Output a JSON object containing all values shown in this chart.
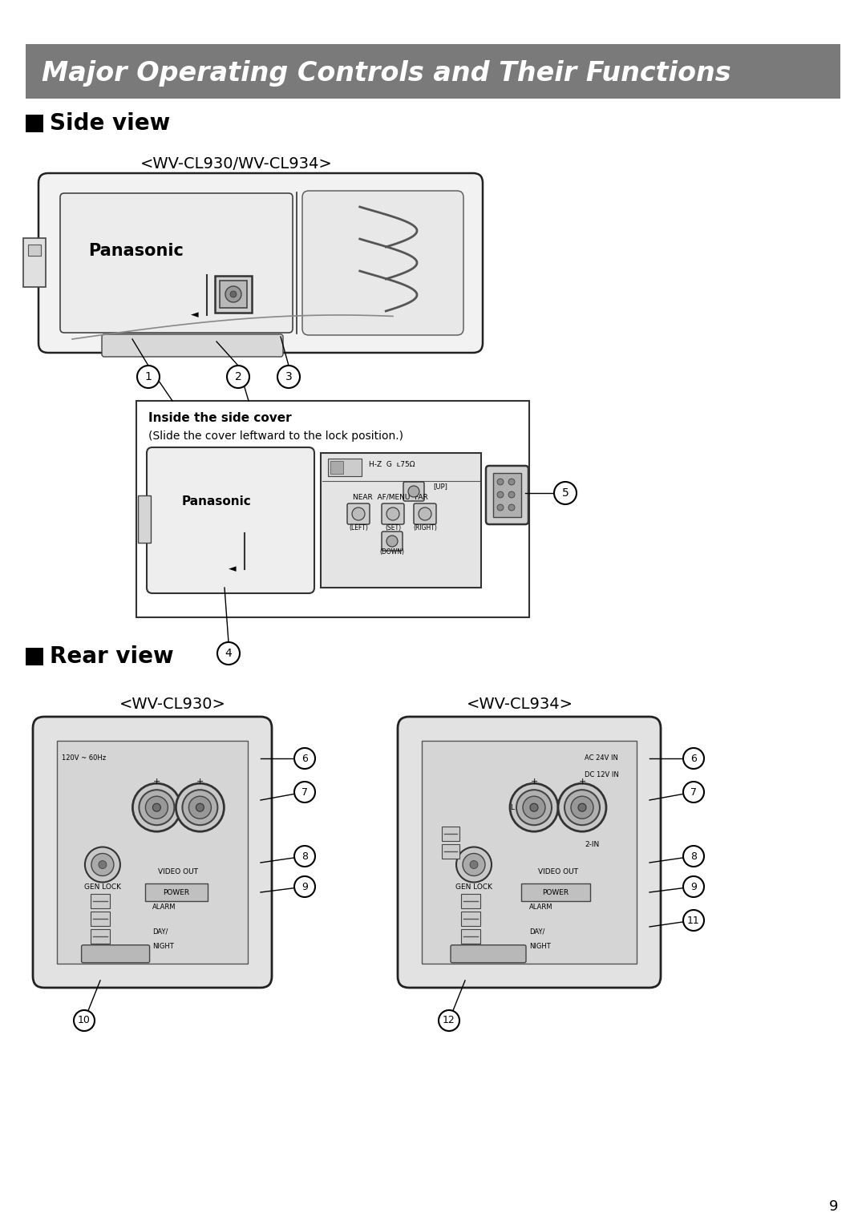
{
  "page_bg": "#ffffff",
  "header_bg": "#7a7a7a",
  "header_text": "Major Operating Controls and Their Functions",
  "header_text_color": "#ffffff",
  "header_font_size": 24,
  "section1_title": "■ Side view",
  "section2_title": "■ Rear view",
  "side_subtitle": "<WV-CL930/WV-CL934>",
  "rear_left_subtitle": "<WV-CL930>",
  "rear_right_subtitle": "<WV-CL934>",
  "inside_cover_title": "Inside the side cover",
  "inside_cover_subtitle": "(Slide the cover leftward to the lock position.)",
  "page_number": "9",
  "section_font_size": 20,
  "subtitle_font_size": 14
}
